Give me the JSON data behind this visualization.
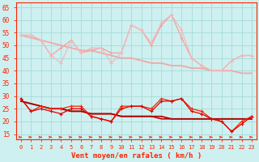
{
  "x": [
    0,
    1,
    2,
    3,
    4,
    5,
    6,
    7,
    8,
    9,
    10,
    11,
    12,
    13,
    14,
    15,
    16,
    17,
    18,
    19,
    20,
    21,
    22,
    23
  ],
  "rafales": [
    54,
    54,
    52,
    46,
    43,
    52,
    47,
    49,
    49,
    43,
    47,
    58,
    56,
    51,
    59,
    62,
    56,
    45,
    42,
    40,
    40,
    44,
    46,
    46
  ],
  "vent_moyen": [
    54,
    54,
    52,
    46,
    49,
    52,
    47,
    48,
    49,
    47,
    47,
    58,
    56,
    50,
    58,
    62,
    53,
    45,
    42,
    40,
    40,
    44,
    46,
    46
  ],
  "trend_light": [
    54,
    53,
    52,
    51,
    50,
    49,
    48,
    48,
    47,
    46,
    45,
    45,
    44,
    43,
    43,
    42,
    42,
    41,
    41,
    40,
    40,
    40,
    39,
    39
  ],
  "dark1": [
    29,
    24,
    26,
    25,
    25,
    26,
    26,
    22,
    21,
    20,
    26,
    26,
    26,
    25,
    29,
    28,
    29,
    25,
    24,
    21,
    20,
    16,
    20,
    22
  ],
  "dark2": [
    29,
    24,
    25,
    24,
    23,
    25,
    25,
    22,
    21,
    20,
    25,
    26,
    26,
    24,
    28,
    28,
    29,
    24,
    23,
    21,
    20,
    16,
    19,
    22
  ],
  "trend_dark1": [
    28,
    27,
    26,
    25,
    25,
    24,
    24,
    23,
    23,
    23,
    22,
    22,
    22,
    22,
    21,
    21,
    21,
    21,
    21,
    21,
    21,
    21,
    21,
    21
  ],
  "trend_dark2": [
    28,
    27,
    26,
    25,
    25,
    24,
    24,
    23,
    23,
    23,
    22,
    22,
    22,
    22,
    22,
    21,
    21,
    21,
    21,
    21,
    21,
    21,
    21,
    21
  ],
  "bg_color": "#cff0f0",
  "grid_color": "#aadddd",
  "color_light1": "#f4a0a0",
  "color_light2": "#f4b8b8",
  "color_dark1": "#ff2200",
  "color_dark2": "#dd0000",
  "color_trend_light": "#f0a8a8",
  "color_trend_dark1": "#cc0000",
  "color_trend_dark2": "#aa0000",
  "arrow_color": "#ff2200",
  "xlabel": "Vent moyen/en rafales ( km/h )",
  "xlabel_color": "#ff2200",
  "tick_color": "#ff2200",
  "ylim": [
    13,
    67
  ],
  "yticks": [
    15,
    20,
    25,
    30,
    35,
    40,
    45,
    50,
    55,
    60,
    65
  ]
}
